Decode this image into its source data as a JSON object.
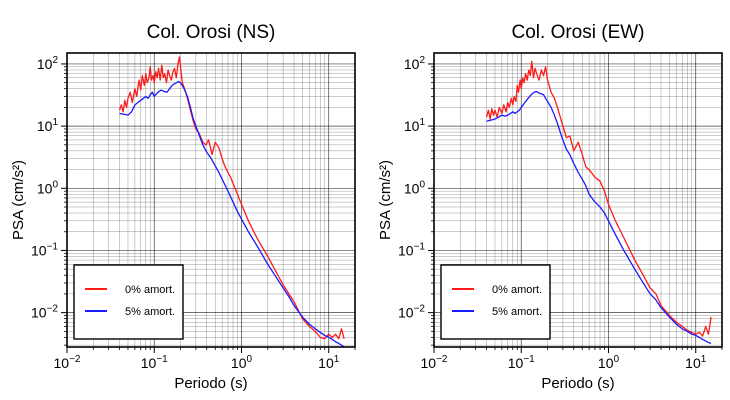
{
  "colors": {
    "undamped": "#ff1a1a",
    "damped": "#1a1aff",
    "axis": "#000000",
    "grid": "#000000",
    "background": "#ffffff"
  },
  "chart_data": [
    {
      "type": "line",
      "title": "Col. Orosi (NS)",
      "xlabel": "Periodo (s)",
      "ylabel": "PSA (cm/s²)",
      "xscale": "log",
      "yscale": "log",
      "xlim": [
        0.01,
        20
      ],
      "ylim": [
        0.0028,
        150
      ],
      "xticks": [
        {
          "value": 0.01,
          "base": "10",
          "exp": "−2"
        },
        {
          "value": 0.1,
          "base": "10",
          "exp": "−1"
        },
        {
          "value": 1,
          "base": "10",
          "exp": "0"
        },
        {
          "value": 10,
          "base": "10",
          "exp": "1"
        }
      ],
      "yticks": [
        {
          "value": 0.01,
          "base": "10",
          "exp": "−2"
        },
        {
          "value": 0.1,
          "base": "10",
          "exp": "−1"
        },
        {
          "value": 1,
          "base": "10",
          "exp": "0"
        },
        {
          "value": 10,
          "base": "10",
          "exp": "1"
        },
        {
          "value": 100,
          "base": "10",
          "exp": "2"
        }
      ],
      "grid": true,
      "legend_position": "bottom-left",
      "series": [
        {
          "name": "0% amort.",
          "color": "#ff1a1a",
          "x": [
            0.04,
            0.042,
            0.044,
            0.046,
            0.048,
            0.05,
            0.053,
            0.056,
            0.06,
            0.063,
            0.067,
            0.07,
            0.073,
            0.077,
            0.08,
            0.083,
            0.087,
            0.09,
            0.093,
            0.097,
            0.1,
            0.104,
            0.108,
            0.112,
            0.117,
            0.122,
            0.127,
            0.132,
            0.138,
            0.144,
            0.15,
            0.157,
            0.164,
            0.171,
            0.179,
            0.187,
            0.195,
            0.2,
            0.21,
            0.22,
            0.24,
            0.26,
            0.28,
            0.3,
            0.33,
            0.36,
            0.39,
            0.42,
            0.46,
            0.5,
            0.55,
            0.6,
            0.65,
            0.7,
            0.75,
            0.8,
            0.9,
            1.0,
            1.2,
            1.5,
            2.0,
            2.5,
            3.0,
            3.5,
            4.0,
            5.0,
            6.0,
            7.0,
            8.0,
            9.0,
            10.0,
            11.0,
            12.0,
            13.0,
            14.0,
            15.0
          ],
          "y": [
            18,
            22,
            17,
            26,
            20,
            28,
            35,
            24,
            40,
            30,
            55,
            38,
            65,
            45,
            70,
            50,
            60,
            90,
            55,
            65,
            50,
            75,
            60,
            85,
            55,
            95,
            60,
            70,
            50,
            80,
            65,
            55,
            75,
            85,
            60,
            100,
            130,
            90,
            50,
            42,
            28,
            18,
            12,
            9,
            7.5,
            5.5,
            5,
            6,
            3.5,
            5.5,
            4.5,
            3,
            2.2,
            1.8,
            1.5,
            1.2,
            0.8,
            0.55,
            0.3,
            0.16,
            0.08,
            0.045,
            0.028,
            0.02,
            0.015,
            0.008,
            0.006,
            0.005,
            0.004,
            0.0038,
            0.0045,
            0.004,
            0.0045,
            0.0038,
            0.0055,
            0.0038
          ]
        },
        {
          "name": "5% amort.",
          "color": "#1a1aff",
          "x": [
            0.04,
            0.045,
            0.05,
            0.055,
            0.06,
            0.065,
            0.07,
            0.075,
            0.08,
            0.085,
            0.09,
            0.095,
            0.1,
            0.11,
            0.12,
            0.13,
            0.14,
            0.15,
            0.16,
            0.17,
            0.18,
            0.19,
            0.2,
            0.22,
            0.24,
            0.26,
            0.28,
            0.3,
            0.33,
            0.36,
            0.4,
            0.45,
            0.5,
            0.55,
            0.6,
            0.7,
            0.8,
            0.9,
            1.0,
            1.2,
            1.5,
            2.0,
            2.5,
            3.0,
            3.5,
            4.0,
            5.0,
            6.0,
            7.0,
            8.0,
            9.0,
            10.0,
            11.0,
            12.0,
            13.0,
            14.0,
            15.0
          ],
          "y": [
            16,
            15.5,
            15,
            17,
            22,
            24,
            26,
            28,
            30,
            28,
            32,
            35,
            30,
            35,
            38,
            36,
            35,
            40,
            45,
            48,
            50,
            52,
            50,
            40,
            30,
            20,
            13,
            10,
            7,
            5,
            3.8,
            3,
            2.3,
            1.8,
            1.4,
            0.9,
            0.6,
            0.42,
            0.32,
            0.2,
            0.12,
            0.06,
            0.037,
            0.025,
            0.018,
            0.013,
            0.0085,
            0.0065,
            0.0055,
            0.0048,
            0.0043,
            0.004,
            0.0037,
            0.0034,
            0.0032,
            0.003,
            0.0028
          ]
        }
      ]
    },
    {
      "type": "line",
      "title": "Col. Orosi (EW)",
      "xlabel": "Periodo (s)",
      "ylabel": "PSA (cm/s²)",
      "xscale": "log",
      "yscale": "log",
      "xlim": [
        0.01,
        20
      ],
      "ylim": [
        0.0028,
        150
      ],
      "xticks": [
        {
          "value": 0.01,
          "base": "10",
          "exp": "−2"
        },
        {
          "value": 0.1,
          "base": "10",
          "exp": "−1"
        },
        {
          "value": 1,
          "base": "10",
          "exp": "0"
        },
        {
          "value": 10,
          "base": "10",
          "exp": "1"
        }
      ],
      "yticks": [
        {
          "value": 0.01,
          "base": "10",
          "exp": "−2"
        },
        {
          "value": 0.1,
          "base": "10",
          "exp": "−1"
        },
        {
          "value": 1,
          "base": "10",
          "exp": "0"
        },
        {
          "value": 10,
          "base": "10",
          "exp": "1"
        },
        {
          "value": 100,
          "base": "10",
          "exp": "2"
        }
      ],
      "grid": true,
      "legend_position": "bottom-left",
      "series": [
        {
          "name": "0% amort.",
          "color": "#ff1a1a",
          "x": [
            0.04,
            0.042,
            0.044,
            0.046,
            0.048,
            0.05,
            0.053,
            0.056,
            0.06,
            0.063,
            0.067,
            0.07,
            0.073,
            0.077,
            0.08,
            0.083,
            0.087,
            0.09,
            0.093,
            0.097,
            0.1,
            0.104,
            0.108,
            0.112,
            0.117,
            0.122,
            0.127,
            0.132,
            0.138,
            0.144,
            0.15,
            0.16,
            0.17,
            0.18,
            0.19,
            0.2,
            0.22,
            0.24,
            0.26,
            0.28,
            0.3,
            0.33,
            0.36,
            0.4,
            0.45,
            0.5,
            0.55,
            0.6,
            0.7,
            0.8,
            0.9,
            1.0,
            1.2,
            1.5,
            2.0,
            2.5,
            3.0,
            3.5,
            4.0,
            5.0,
            6.0,
            7.0,
            8.0,
            9.0,
            10.0,
            11.0,
            12.0,
            13.0,
            14.0,
            15.0
          ],
          "y": [
            14,
            18,
            13,
            19,
            15,
            18,
            14,
            20,
            16,
            22,
            17,
            24,
            20,
            28,
            22,
            30,
            25,
            45,
            35,
            55,
            40,
            60,
            50,
            70,
            55,
            80,
            65,
            110,
            60,
            85,
            70,
            55,
            80,
            65,
            90,
            55,
            35,
            28,
            20,
            14,
            10,
            6.5,
            7,
            4,
            5.5,
            3.5,
            2.2,
            2,
            1.5,
            1.3,
            0.9,
            0.55,
            0.3,
            0.16,
            0.07,
            0.04,
            0.025,
            0.02,
            0.013,
            0.009,
            0.007,
            0.006,
            0.0052,
            0.0048,
            0.0045,
            0.0048,
            0.0042,
            0.006,
            0.0045,
            0.0085
          ]
        },
        {
          "name": "5% amort.",
          "color": "#1a1aff",
          "x": [
            0.04,
            0.045,
            0.05,
            0.055,
            0.06,
            0.065,
            0.07,
            0.075,
            0.08,
            0.085,
            0.09,
            0.095,
            0.1,
            0.11,
            0.12,
            0.13,
            0.14,
            0.15,
            0.16,
            0.17,
            0.18,
            0.19,
            0.2,
            0.22,
            0.24,
            0.26,
            0.28,
            0.3,
            0.33,
            0.36,
            0.4,
            0.45,
            0.5,
            0.55,
            0.6,
            0.7,
            0.8,
            0.9,
            1.0,
            1.2,
            1.5,
            2.0,
            2.5,
            3.0,
            3.5,
            4.0,
            5.0,
            6.0,
            7.0,
            8.0,
            9.0,
            10.0,
            11.0,
            12.0,
            13.0,
            14.0,
            15.0
          ],
          "y": [
            12,
            12.5,
            13,
            14,
            15,
            14.5,
            15,
            16,
            17,
            16,
            17,
            18,
            20,
            24,
            28,
            32,
            35,
            36,
            34,
            33,
            32,
            28,
            25,
            20,
            15,
            11,
            8,
            6,
            4.2,
            3.5,
            2.5,
            1.8,
            1.4,
            1.1,
            0.8,
            0.6,
            0.5,
            0.4,
            0.3,
            0.18,
            0.1,
            0.05,
            0.03,
            0.02,
            0.016,
            0.012,
            0.0085,
            0.0065,
            0.0055,
            0.005,
            0.0045,
            0.0043,
            0.004,
            0.0037,
            0.0035,
            0.0033,
            0.0032
          ]
        }
      ]
    }
  ]
}
